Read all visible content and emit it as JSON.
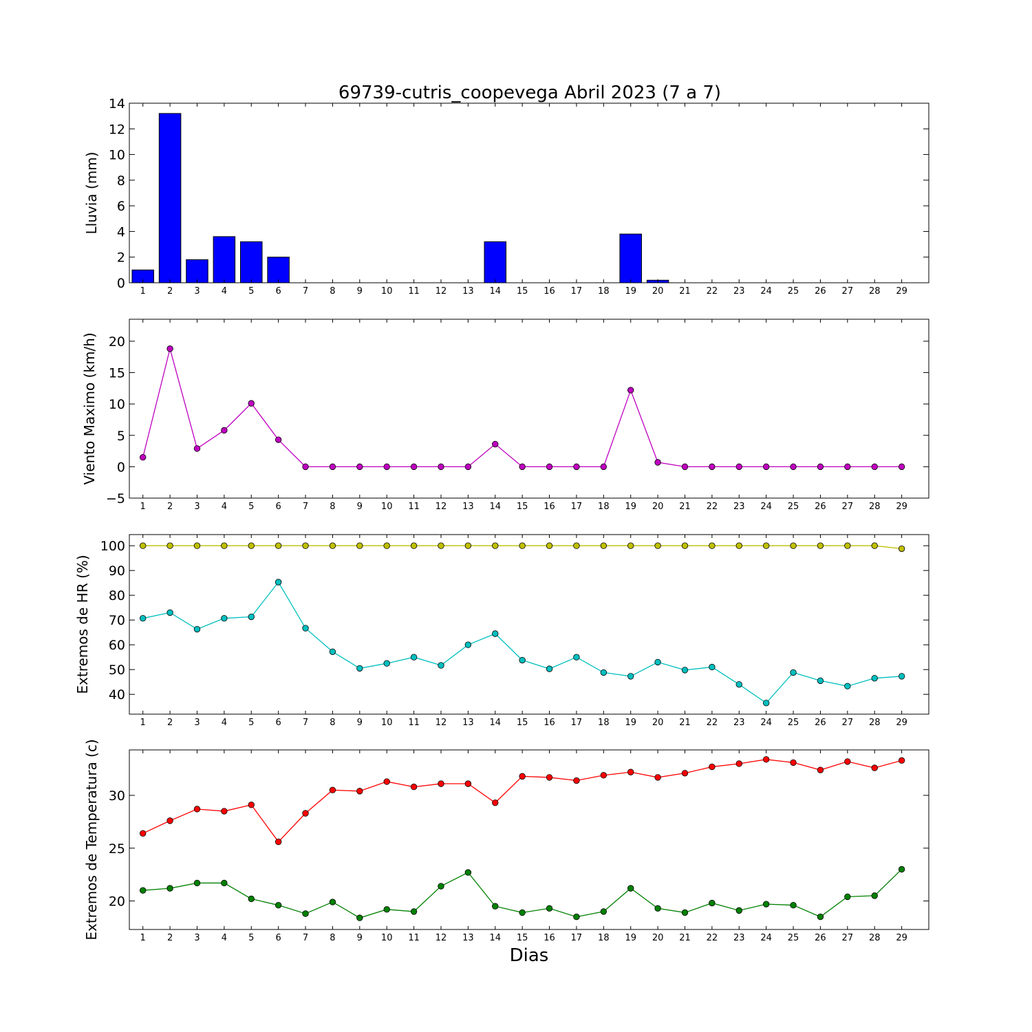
{
  "title": "69739-cutris_coopevega Abril 2023  (7 a 7)",
  "xlabel": "Dias",
  "days": [
    1,
    2,
    3,
    4,
    5,
    6,
    7,
    8,
    9,
    10,
    11,
    12,
    13,
    14,
    15,
    16,
    17,
    18,
    19,
    20,
    21,
    22,
    23,
    24,
    25,
    26,
    27,
    28,
    29
  ],
  "chart_data": [
    {
      "type": "bar",
      "ylabel": "Lluvia (mm)",
      "ylim": [
        0,
        14
      ],
      "yticks": [
        0,
        2,
        4,
        6,
        8,
        10,
        12,
        14
      ],
      "xlim": [
        0.5,
        30
      ],
      "series": [
        {
          "color": "#0000ff",
          "values": [
            1.0,
            13.2,
            1.8,
            3.6,
            3.2,
            2.0,
            0,
            0,
            0,
            0,
            0,
            0,
            0,
            3.2,
            0,
            0,
            0,
            0,
            3.8,
            0.2,
            0,
            0,
            0,
            0,
            0,
            0,
            0,
            0,
            0
          ]
        }
      ]
    },
    {
      "type": "line",
      "ylabel": "Viento Maximo (km/h)",
      "ylim": [
        -5,
        23.5
      ],
      "yticks": [
        -5,
        0,
        5,
        10,
        15,
        20
      ],
      "ytick_labels": [
        "−5",
        "0",
        "5",
        "10",
        "15",
        "20"
      ],
      "xlim": [
        0.5,
        30
      ],
      "series": [
        {
          "color": "#bf00bf",
          "values": [
            1.5,
            18.8,
            2.9,
            5.8,
            10.1,
            4.3,
            0,
            0,
            0,
            0,
            0,
            0,
            0,
            3.6,
            0,
            0,
            0,
            0,
            12.2,
            0.7,
            0,
            0,
            0,
            0,
            0,
            0,
            0,
            0,
            0
          ]
        }
      ]
    },
    {
      "type": "line",
      "ylabel": "Extremos de HR (%)",
      "ylim": [
        32,
        104.5
      ],
      "yticks": [
        40,
        50,
        60,
        70,
        80,
        90,
        100
      ],
      "xlim": [
        0.5,
        30
      ],
      "series": [
        {
          "color": "#bfbf00",
          "values": [
            100,
            100,
            100,
            100,
            100,
            100,
            100,
            100,
            100,
            100,
            100,
            100,
            100,
            100,
            100,
            100,
            100,
            100,
            100,
            100,
            100,
            100,
            100,
            100,
            100,
            100,
            100,
            100,
            98.8
          ]
        },
        {
          "color": "#00bfbf",
          "values": [
            70.7,
            73.0,
            66.3,
            70.7,
            71.3,
            85.3,
            66.7,
            57.2,
            50.5,
            52.5,
            55.0,
            51.7,
            60.0,
            64.5,
            53.8,
            50.3,
            55.0,
            48.8,
            47.3,
            53.0,
            49.8,
            51.0,
            44.0,
            36.5,
            48.8,
            45.5,
            43.3,
            46.5,
            47.3
          ]
        }
      ]
    },
    {
      "type": "line",
      "ylabel": "Extremos de Temperatura (c)",
      "ylim": [
        17.3,
        34.3
      ],
      "yticks": [
        20,
        25,
        30
      ],
      "xlim": [
        0.5,
        30
      ],
      "series": [
        {
          "color": "#ff0000",
          "values": [
            26.4,
            27.6,
            28.7,
            28.5,
            29.1,
            25.6,
            28.3,
            30.5,
            30.4,
            31.3,
            30.8,
            31.1,
            31.1,
            29.3,
            31.8,
            31.7,
            31.4,
            31.9,
            32.2,
            31.7,
            32.1,
            32.7,
            33.0,
            33.4,
            33.1,
            32.4,
            33.2,
            32.6,
            33.3
          ]
        },
        {
          "color": "#008000",
          "values": [
            21.0,
            21.2,
            21.7,
            21.7,
            20.2,
            19.6,
            18.8,
            19.9,
            18.4,
            19.2,
            19.0,
            21.4,
            22.7,
            19.5,
            18.9,
            19.3,
            18.5,
            19.0,
            21.2,
            19.3,
            18.9,
            19.8,
            19.1,
            19.7,
            19.6,
            18.5,
            20.4,
            20.5,
            23.0
          ]
        }
      ]
    }
  ]
}
